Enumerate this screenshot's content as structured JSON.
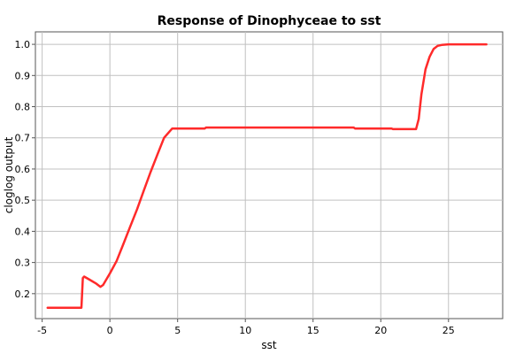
{
  "chart_data": {
    "type": "line",
    "title": "Response of Dinophyceae to sst",
    "xlabel": "sst",
    "ylabel": "cloglog output",
    "xlim": [
      -5.5,
      29
    ],
    "ylim": [
      0.12,
      1.04
    ],
    "xticks": [
      -5,
      0,
      5,
      10,
      15,
      20,
      25
    ],
    "xtick_labels": [
      "-5",
      "0",
      "5",
      "10",
      "15",
      "20",
      "25"
    ],
    "yticks": [
      0.2,
      0.3,
      0.4,
      0.5,
      0.6,
      0.7,
      0.8,
      0.9,
      1.0
    ],
    "ytick_labels": [
      "0.2",
      "0.3",
      "0.4",
      "0.5",
      "0.6",
      "0.7",
      "0.8",
      "0.9",
      "1.0"
    ],
    "grid": true,
    "series": [
      {
        "color": "#ff2a2a",
        "x": [
          -4.6,
          -2.1,
          -2.0,
          -1.9,
          -1.5,
          -1.0,
          -0.7,
          -0.5,
          0.0,
          0.5,
          1.0,
          1.5,
          2.0,
          2.5,
          3.0,
          3.5,
          4.0,
          4.4,
          4.6,
          7.0,
          7.1,
          18.0,
          18.1,
          20.8,
          20.9,
          22.6,
          22.8,
          23.0,
          23.3,
          23.6,
          23.9,
          24.2,
          24.5,
          25.0,
          27.8
        ],
        "y": [
          0.155,
          0.155,
          0.25,
          0.255,
          0.245,
          0.232,
          0.222,
          0.228,
          0.265,
          0.305,
          0.36,
          0.415,
          0.47,
          0.53,
          0.59,
          0.645,
          0.7,
          0.72,
          0.73,
          0.73,
          0.733,
          0.733,
          0.73,
          0.73,
          0.728,
          0.728,
          0.76,
          0.84,
          0.92,
          0.96,
          0.985,
          0.995,
          0.998,
          1.0,
          1.0
        ]
      }
    ]
  }
}
